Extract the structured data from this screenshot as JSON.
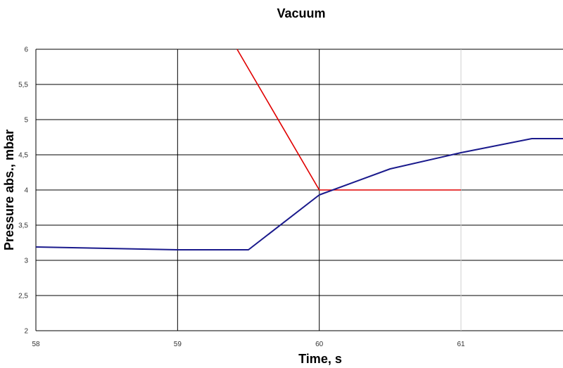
{
  "chart_data": {
    "type": "line",
    "title": "Vacuum",
    "xlabel": "Time, s",
    "ylabel": "Pressure abs., mbar",
    "xlim": [
      58,
      61.72
    ],
    "ylim": [
      2,
      6
    ],
    "x_ticks": [
      58,
      59,
      60,
      61
    ],
    "x_tick_labels": [
      "58",
      "59",
      "60",
      "61"
    ],
    "y_ticks": [
      2,
      2.5,
      3,
      3.5,
      4,
      4.5,
      5,
      5.5,
      6
    ],
    "y_tick_labels": [
      "2",
      "2,5",
      "3",
      "3,5",
      "4",
      "4,5",
      "5",
      "5,5",
      "6"
    ],
    "grid": true,
    "legend": false,
    "series": [
      {
        "color": "#e00000",
        "points": [
          [
            59.42,
            6.0
          ],
          [
            60.0,
            4.0
          ],
          [
            61.0,
            4.0
          ]
        ]
      },
      {
        "color": "#1a1a8c",
        "points": [
          [
            58.0,
            3.19
          ],
          [
            59.0,
            3.15
          ],
          [
            59.5,
            3.15
          ],
          [
            60.0,
            3.93
          ],
          [
            60.5,
            4.3
          ],
          [
            61.0,
            4.53
          ],
          [
            61.5,
            4.73
          ],
          [
            61.72,
            4.73
          ]
        ]
      }
    ]
  }
}
